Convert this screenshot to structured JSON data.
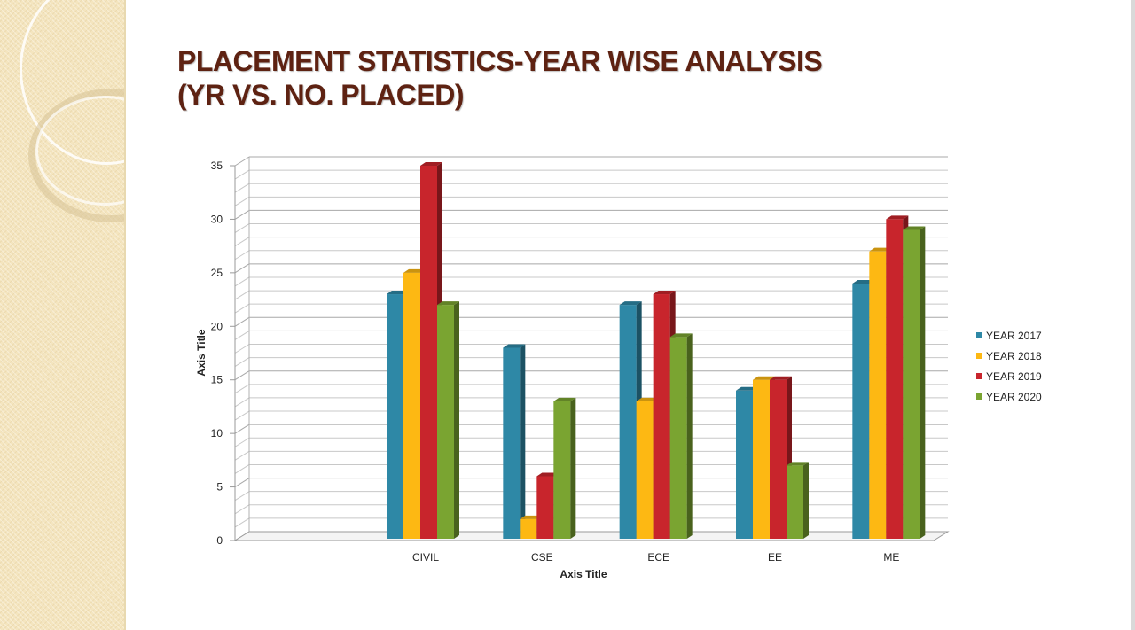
{
  "slide": {
    "title_line1": "PLACEMENT STATISTICS-YEAR WISE ANALYSIS",
    "title_line2": "(YR VS. NO. PLACED)"
  },
  "chart_data": {
    "type": "bar",
    "categories": [
      "",
      "CIVIL",
      "CSE",
      "ECE",
      "EE",
      "ME"
    ],
    "series": [
      {
        "name": "YEAR 2017",
        "values": [
          null,
          23,
          18,
          22,
          14,
          24
        ],
        "color": "#2e88a6"
      },
      {
        "name": "YEAR 2018",
        "values": [
          null,
          25,
          2,
          13,
          15,
          27
        ],
        "color": "#fdb813"
      },
      {
        "name": "YEAR 2019",
        "values": [
          null,
          35,
          6,
          23,
          15,
          30
        ],
        "color": "#c8252c"
      },
      {
        "name": "YEAR 2020",
        "values": [
          null,
          22,
          13,
          19,
          7,
          29
        ],
        "color": "#7aa431"
      }
    ],
    "xlabel": "Axis Title",
    "ylabel": "Axis Title",
    "ylim": [
      0,
      35
    ],
    "yticks": [
      0,
      5,
      10,
      15,
      20,
      25,
      30,
      35
    ],
    "grid": true,
    "legend_position": "right",
    "style": "3d-clustered-column"
  }
}
